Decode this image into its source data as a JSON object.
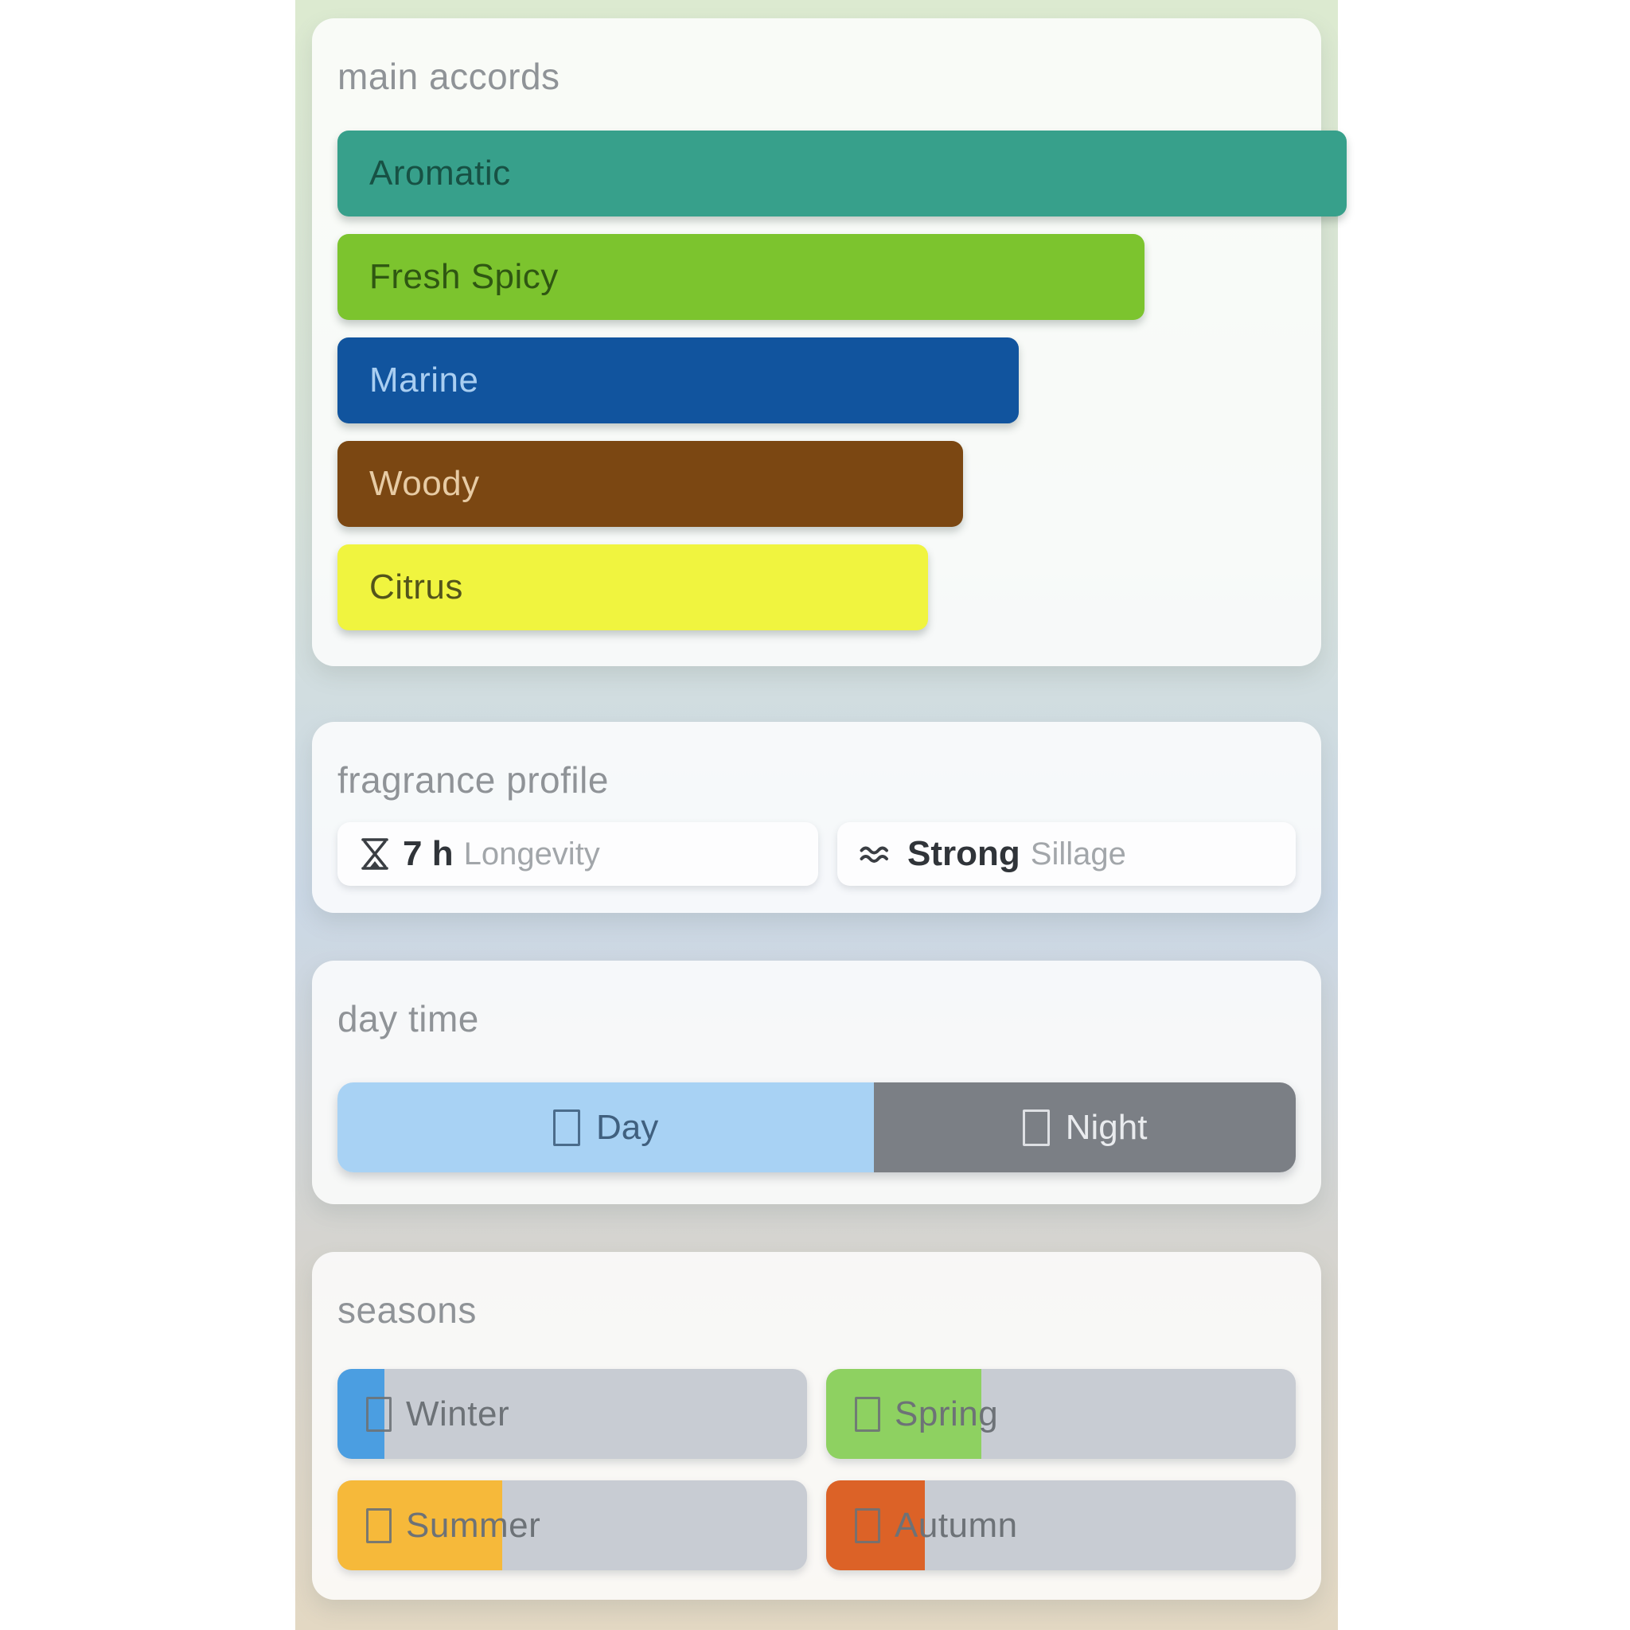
{
  "accords_panel": {
    "title": "main accords",
    "bars": [
      {
        "label": "Aromatic",
        "width_pct": 100,
        "bg": "#37a08b",
        "text_color": "#175144"
      },
      {
        "label": "Fresh Spicy",
        "width_pct": 80,
        "bg": "#7cc42e",
        "text_color": "#2f5712"
      },
      {
        "label": "Marine",
        "width_pct": 67.5,
        "bg": "#11549e",
        "text_color": "#a9cef1"
      },
      {
        "label": "Woody",
        "width_pct": 62,
        "bg": "#7b4712",
        "text_color": "#e7cba4"
      },
      {
        "label": "Citrus",
        "width_pct": 58.5,
        "bg": "#f0f43f",
        "text_color": "#53541b"
      }
    ]
  },
  "profile_panel": {
    "title": "fragrance profile",
    "longevity": {
      "value": "7 h",
      "label": "Longevity",
      "icon": "hourglass-icon"
    },
    "sillage": {
      "value": "Strong",
      "label": "Sillage",
      "icon": "waves-icon"
    }
  },
  "daytime_panel": {
    "title": "day time",
    "day": {
      "label": "Day",
      "width_pct": 56,
      "bg": "#a8d2f4",
      "text_color": "#40607f"
    },
    "night": {
      "label": "Night",
      "width_pct": 44,
      "bg": "#7b7f85",
      "text_color": "#e9ebee"
    }
  },
  "seasons_panel": {
    "title": "seasons",
    "track_color": "#c8ccd3",
    "items": [
      {
        "label": "Winter",
        "fill_pct": 10,
        "fill": "#4b9ee1"
      },
      {
        "label": "Spring",
        "fill_pct": 33,
        "fill": "#8ed161"
      },
      {
        "label": "Summer",
        "fill_pct": 35,
        "fill": "#f6b93a"
      },
      {
        "label": "Autumn",
        "fill_pct": 21,
        "fill": "#dc6227"
      }
    ]
  }
}
